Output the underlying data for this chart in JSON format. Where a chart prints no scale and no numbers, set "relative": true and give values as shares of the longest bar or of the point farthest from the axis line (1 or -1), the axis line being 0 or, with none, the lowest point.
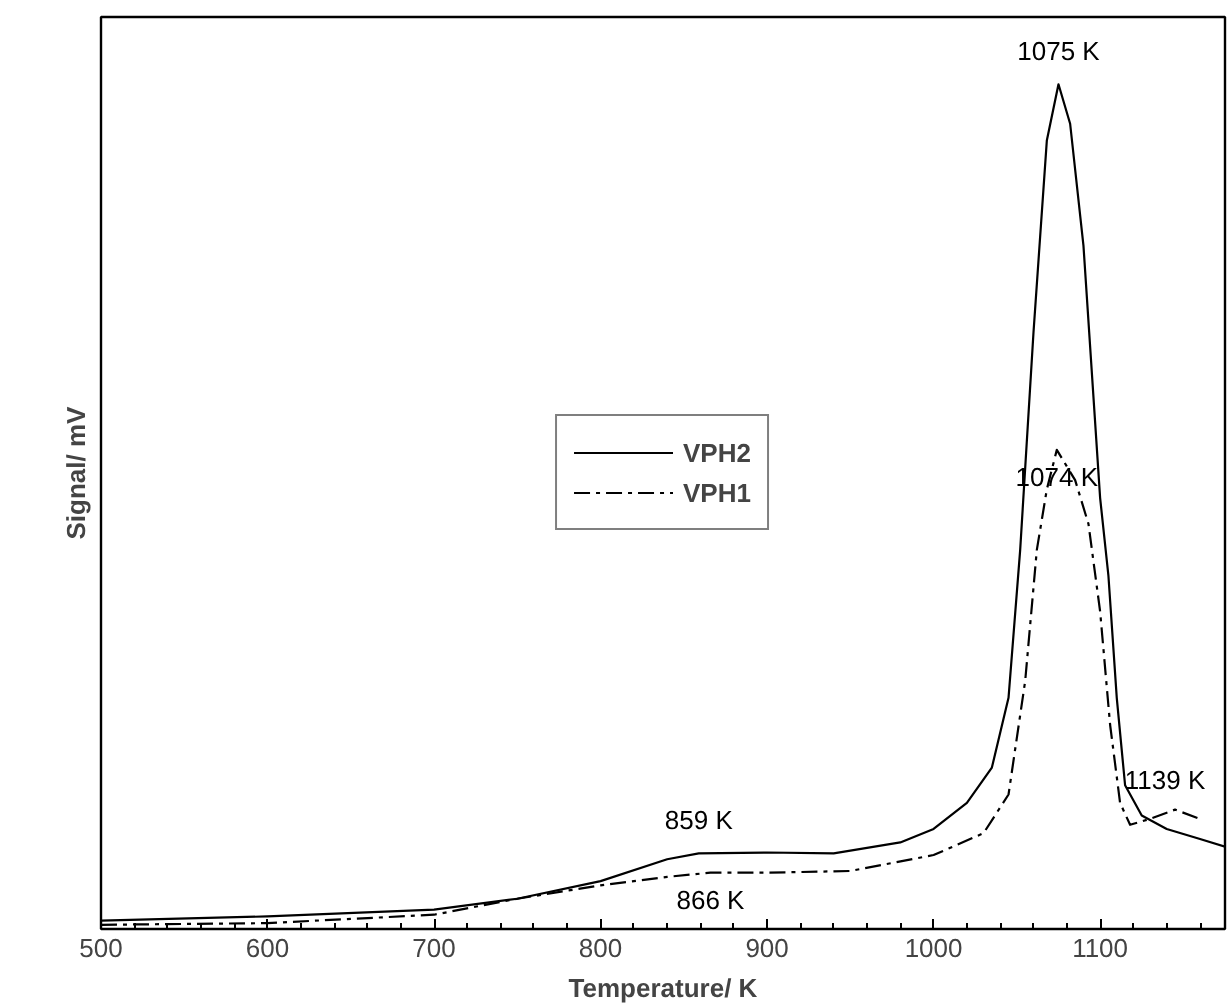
{
  "chart_data": {
    "type": "line",
    "relative": true,
    "xlabel": "Temperature/ K",
    "ylabel": "Signal/ mV",
    "xlim": [
      500,
      1175
    ],
    "xticks": [
      500,
      600,
      700,
      800,
      900,
      1000,
      1100
    ],
    "legend": "center",
    "grid": false,
    "marker": "none",
    "series": [
      {
        "name": "VPH2",
        "color": "#000000",
        "line_style": "solid",
        "x": [
          500,
          600,
          700,
          750,
          800,
          840,
          859,
          900,
          940,
          980,
          1000,
          1020,
          1035,
          1045,
          1052,
          1060,
          1068,
          1075,
          1082,
          1090,
          1100,
          1105,
          1110,
          1115,
          1125,
          1140,
          1160,
          1175
        ],
        "values": [
          0.005,
          0.01,
          0.018,
          0.031,
          0.052,
          0.078,
          0.085,
          0.086,
          0.085,
          0.098,
          0.114,
          0.145,
          0.187,
          0.27,
          0.446,
          0.705,
          0.933,
          1,
          0.953,
          0.808,
          0.508,
          0.415,
          0.27,
          0.166,
          0.13,
          0.114,
          0.102,
          0.093
        ]
      },
      {
        "name": "VPH1",
        "color": "#000000",
        "line_style": "dashdot",
        "x": [
          500,
          600,
          700,
          750,
          800,
          840,
          866,
          900,
          950,
          1000,
          1030,
          1045,
          1055,
          1062,
          1068,
          1074,
          1085,
          1093,
          1100,
          1106,
          1112,
          1118,
          1130,
          1145,
          1160
        ],
        "values": [
          0,
          0.002,
          0.012,
          0.031,
          0.047,
          0.057,
          0.062,
          0.062,
          0.064,
          0.083,
          0.109,
          0.155,
          0.29,
          0.446,
          0.518,
          0.565,
          0.529,
          0.477,
          0.373,
          0.238,
          0.145,
          0.119,
          0.126,
          0.137,
          0.126
        ]
      }
    ],
    "annotations": [
      {
        "text": "1075 K",
        "x": 1075,
        "y": 1
      },
      {
        "text": "1074 K",
        "x": 1074,
        "y": 0.565
      },
      {
        "text": "859 K",
        "x": 859,
        "y": 0.085
      },
      {
        "text": "866 K",
        "x": 866,
        "y": 0.062
      },
      {
        "text": "1139 K",
        "x": 1139,
        "y": 0.133
      }
    ]
  }
}
